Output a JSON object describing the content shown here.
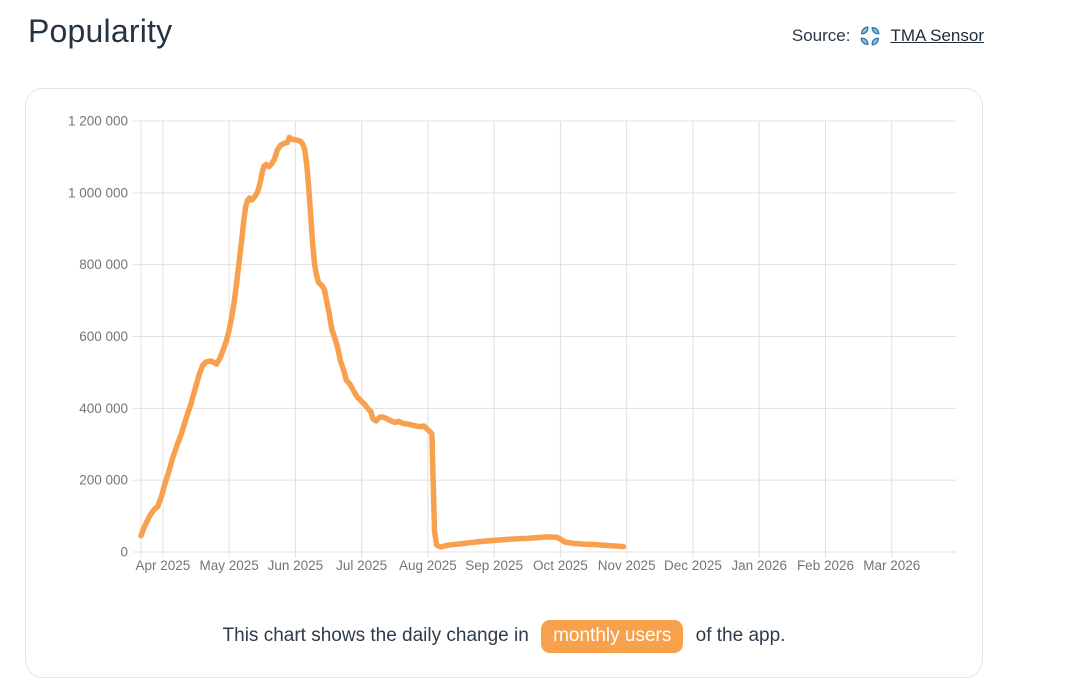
{
  "header": {
    "title": "Popularity",
    "source_label": "Source:",
    "source_link": "TMA Sensor"
  },
  "caption": {
    "before": "This chart shows the daily change in",
    "highlight": "monthly users",
    "after": "of the app."
  },
  "colors": {
    "accent_orange": "#F7A14D",
    "line_orange": "#F9A04E",
    "icon_blue_fill": "#7EC5EC",
    "icon_blue_stroke": "#2B6FA3",
    "grid_gray": "#e0e0e0",
    "tick_label_gray": "#757575"
  },
  "chart_data": {
    "type": "line",
    "series_name": "monthly users",
    "title": "",
    "xlabel": "",
    "ylabel": "",
    "x_unit": "months (0 = Apr 2025, fractional = day within month)",
    "xlim": [
      -0.33,
      11.97
    ],
    "ylim": [
      0,
      1200000
    ],
    "grid": true,
    "legend": false,
    "line_color": "#F9A04E",
    "x_ticks": [
      0,
      1,
      2,
      3,
      4,
      5,
      6,
      7,
      8,
      9,
      10,
      11
    ],
    "x_tick_labels": [
      "Apr 2025",
      "May 2025",
      "Jun 2025",
      "Jul 2025",
      "Aug 2025",
      "Sep 2025",
      "Oct 2025",
      "Nov 2025",
      "Dec 2025",
      "Jan 2026",
      "Feb 2026",
      "Mar 2026"
    ],
    "y_ticks": [
      0,
      200000,
      400000,
      600000,
      800000,
      1000000,
      1200000
    ],
    "y_tick_labels": [
      "0",
      "200 000",
      "400 000",
      "600 000",
      "800 000",
      "1 000 000",
      "1 200 000"
    ],
    "points": [
      [
        -0.33,
        45000
      ],
      [
        -0.28,
        70000
      ],
      [
        -0.2,
        100000
      ],
      [
        -0.13,
        119000
      ],
      [
        -0.08,
        126000
      ],
      [
        -0.02,
        155000
      ],
      [
        0.03,
        190000
      ],
      [
        0.08,
        218000
      ],
      [
        0.15,
        263000
      ],
      [
        0.22,
        300000
      ],
      [
        0.28,
        330000
      ],
      [
        0.35,
        372000
      ],
      [
        0.42,
        410000
      ],
      [
        0.48,
        450000
      ],
      [
        0.55,
        495000
      ],
      [
        0.6,
        519000
      ],
      [
        0.65,
        529000
      ],
      [
        0.72,
        532000
      ],
      [
        0.78,
        527000
      ],
      [
        0.81,
        523000
      ],
      [
        0.86,
        539000
      ],
      [
        0.91,
        562000
      ],
      [
        0.96,
        590000
      ],
      [
        1.0,
        617000
      ],
      [
        1.04,
        655000
      ],
      [
        1.08,
        700000
      ],
      [
        1.12,
        760000
      ],
      [
        1.16,
        822000
      ],
      [
        1.19,
        868000
      ],
      [
        1.22,
        921000
      ],
      [
        1.25,
        962000
      ],
      [
        1.28,
        980000
      ],
      [
        1.31,
        986000
      ],
      [
        1.34,
        980000
      ],
      [
        1.38,
        987000
      ],
      [
        1.43,
        1003000
      ],
      [
        1.47,
        1030000
      ],
      [
        1.5,
        1058000
      ],
      [
        1.53,
        1075000
      ],
      [
        1.56,
        1079000
      ],
      [
        1.6,
        1073000
      ],
      [
        1.63,
        1078000
      ],
      [
        1.68,
        1092000
      ],
      [
        1.73,
        1120000
      ],
      [
        1.78,
        1133000
      ],
      [
        1.83,
        1138000
      ],
      [
        1.88,
        1140000
      ],
      [
        1.91,
        1155000
      ],
      [
        1.94,
        1150000
      ],
      [
        1.99,
        1148000
      ],
      [
        2.04,
        1146000
      ],
      [
        2.08,
        1143000
      ],
      [
        2.11,
        1136000
      ],
      [
        2.14,
        1120000
      ],
      [
        2.17,
        1080000
      ],
      [
        2.2,
        1020000
      ],
      [
        2.23,
        940000
      ],
      [
        2.26,
        860000
      ],
      [
        2.29,
        800000
      ],
      [
        2.32,
        770000
      ],
      [
        2.35,
        750000
      ],
      [
        2.4,
        742000
      ],
      [
        2.44,
        730000
      ],
      [
        2.47,
        700000
      ],
      [
        2.51,
        664000
      ],
      [
        2.55,
        620000
      ],
      [
        2.59,
        598000
      ],
      [
        2.63,
        575000
      ],
      [
        2.68,
        533000
      ],
      [
        2.73,
        505000
      ],
      [
        2.77,
        478000
      ],
      [
        2.82,
        468000
      ],
      [
        2.87,
        452000
      ],
      [
        2.93,
        432000
      ],
      [
        2.99,
        421000
      ],
      [
        3.05,
        410000
      ],
      [
        3.1,
        398000
      ],
      [
        3.14,
        391000
      ],
      [
        3.17,
        371000
      ],
      [
        3.22,
        365000
      ],
      [
        3.27,
        375000
      ],
      [
        3.32,
        376000
      ],
      [
        3.38,
        371000
      ],
      [
        3.44,
        365000
      ],
      [
        3.5,
        361000
      ],
      [
        3.56,
        364000
      ],
      [
        3.62,
        358000
      ],
      [
        3.7,
        356000
      ],
      [
        3.79,
        352000
      ],
      [
        3.88,
        349000
      ],
      [
        3.94,
        351000
      ],
      [
        3.99,
        342000
      ],
      [
        4.03,
        335000
      ],
      [
        4.06,
        328000
      ],
      [
        4.1,
        60000
      ],
      [
        4.13,
        20000
      ],
      [
        4.19,
        14000
      ],
      [
        4.3,
        19000
      ],
      [
        4.45,
        22000
      ],
      [
        4.6,
        25000
      ],
      [
        4.75,
        28000
      ],
      [
        4.9,
        31000
      ],
      [
        5.05,
        33000
      ],
      [
        5.2,
        35000
      ],
      [
        5.35,
        37000
      ],
      [
        5.5,
        38000
      ],
      [
        5.65,
        40000
      ],
      [
        5.8,
        42000
      ],
      [
        5.95,
        41000
      ],
      [
        6.02,
        33000
      ],
      [
        6.08,
        27000
      ],
      [
        6.2,
        24000
      ],
      [
        6.35,
        22000
      ],
      [
        6.5,
        21000
      ],
      [
        6.65,
        19000
      ],
      [
        6.8,
        17000
      ],
      [
        6.95,
        15000
      ]
    ]
  }
}
